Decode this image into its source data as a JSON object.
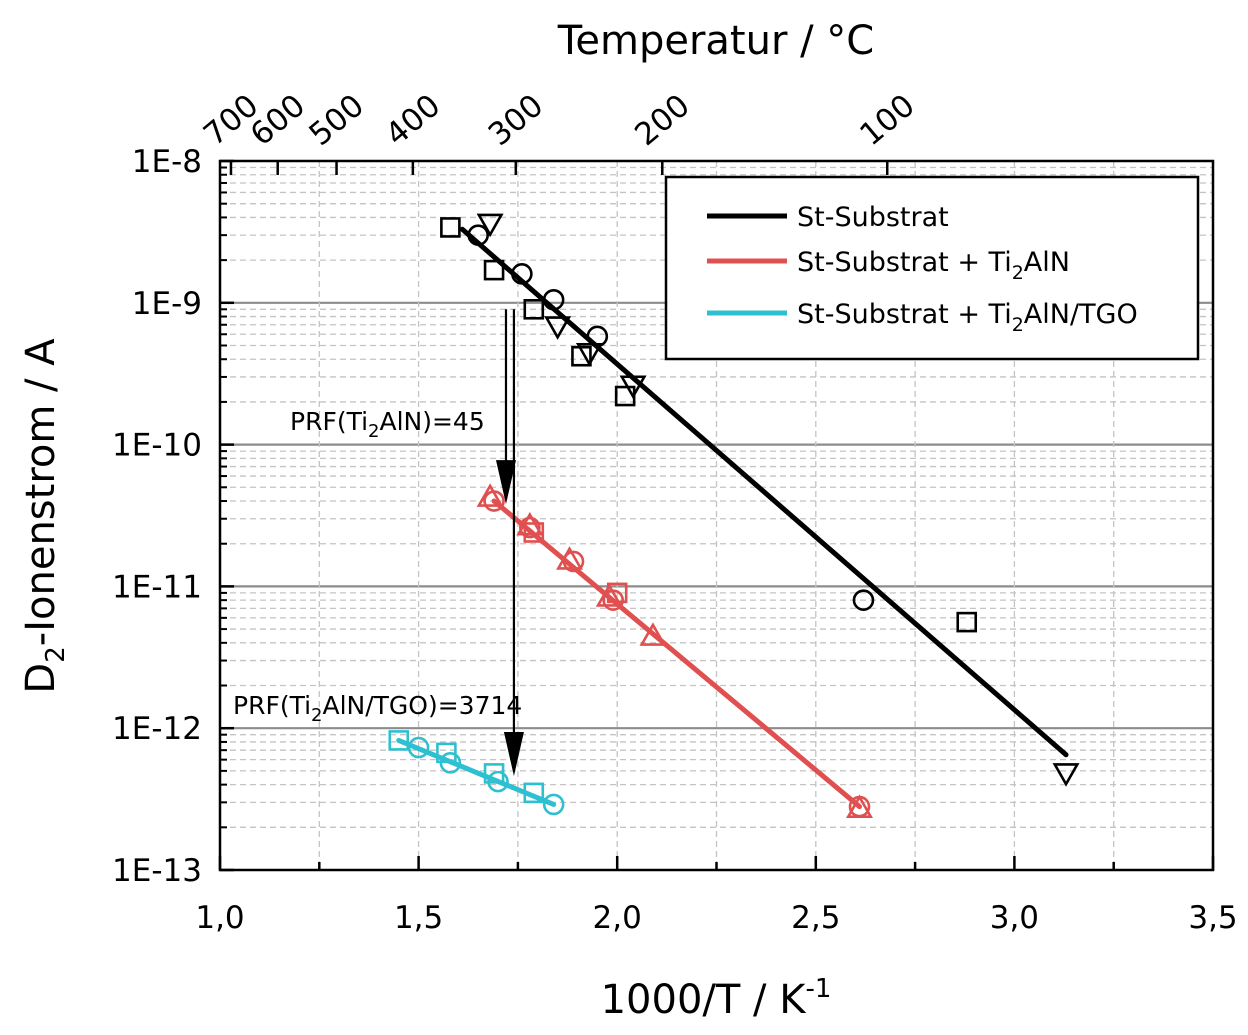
{
  "chart_data": {
    "type": "scatter",
    "x_axis": {
      "label_main": "1000/T / K",
      "label_sup": "-1",
      "range": [
        1.0,
        3.5
      ],
      "ticks": [
        1.0,
        1.5,
        2.0,
        2.5,
        3.0,
        3.5
      ],
      "tick_labels": [
        "1,0",
        "1,5",
        "2,0",
        "2,5",
        "3,0",
        "3,5"
      ]
    },
    "top_axis": {
      "label": "Temperatur / °C",
      "ticks_celsius": [
        700,
        600,
        500,
        400,
        300,
        200,
        100
      ],
      "tick_labels": [
        "700",
        "600",
        "500",
        "400",
        "300",
        "200",
        "100"
      ]
    },
    "y_axis": {
      "label_pre": "D",
      "label_sub": "2",
      "label_post": "-Ionenstrom / A",
      "scale": "log",
      "range": [
        1e-13,
        1e-08
      ],
      "tick_labels": [
        "1E-13",
        "1E-12",
        "1E-11",
        "1E-10",
        "1E-9",
        "1E-8"
      ]
    },
    "grid": true,
    "legend_position": "top-right",
    "series": [
      {
        "name": "St-Substrat",
        "color": "#000000",
        "fit": [
          [
            1.61,
            3.3e-09
          ],
          [
            3.13,
            6.5e-13
          ]
        ],
        "markers": {
          "square": [
            [
              1.58,
              3.4e-09
            ],
            [
              1.69,
              1.7e-09
            ],
            [
              1.79,
              9e-10
            ],
            [
              1.91,
              4.2e-10
            ],
            [
              2.02,
              2.2e-10
            ],
            [
              2.88,
              5.6e-12
            ]
          ],
          "circle": [
            [
              1.65,
              3e-09
            ],
            [
              1.76,
              1.6e-09
            ],
            [
              1.84,
              1.05e-09
            ],
            [
              1.95,
              5.8e-10
            ],
            [
              2.62,
              8e-12
            ]
          ],
          "triangle_down": [
            [
              1.68,
              3.6e-09
            ],
            [
              1.85,
              6.8e-10
            ],
            [
              1.93,
              4.4e-10
            ],
            [
              2.04,
              2.6e-10
            ],
            [
              3.13,
              4.8e-13
            ]
          ]
        }
      },
      {
        "name_pre": "St-Substrat + Ti",
        "name_sub": "2",
        "name_post": "AlN",
        "color": "#e05050",
        "fit": [
          [
            1.69,
            4e-11
          ],
          [
            2.61,
            2.8e-13
          ]
        ],
        "markers": {
          "square": [
            [
              1.79,
              2.4e-11
            ],
            [
              2.0,
              9e-12
            ]
          ],
          "circle": [
            [
              1.69,
              4e-11
            ],
            [
              1.78,
              2.6e-11
            ],
            [
              1.89,
              1.5e-11
            ],
            [
              1.99,
              8e-12
            ],
            [
              2.61,
              2.8e-13
            ]
          ],
          "triangle_up": [
            [
              1.68,
              4.3e-11
            ],
            [
              1.78,
              2.7e-11
            ],
            [
              1.88,
              1.55e-11
            ],
            [
              1.98,
              8.5e-12
            ],
            [
              2.09,
              4.5e-12
            ],
            [
              2.61,
              2.75e-13
            ]
          ]
        }
      },
      {
        "name_pre": "St-Substrat + Ti",
        "name_sub": "2",
        "name_post": "AlN/TGO",
        "color": "#2ec0d0",
        "fit": [
          [
            1.45,
            8.2e-13
          ],
          [
            1.84,
            2.9e-13
          ]
        ],
        "markers": {
          "square": [
            [
              1.45,
              8.2e-13
            ],
            [
              1.57,
              6.7e-13
            ],
            [
              1.69,
              4.8e-13
            ],
            [
              1.79,
              3.5e-13
            ]
          ],
          "circle": [
            [
              1.5,
              7.3e-13
            ],
            [
              1.58,
              5.7e-13
            ],
            [
              1.7,
              4.2e-13
            ],
            [
              1.84,
              2.9e-13
            ]
          ]
        }
      }
    ],
    "annotations": [
      {
        "text_pre": "PRF(Ti",
        "text_sub": "2",
        "text_post": "AlN)=45",
        "arrow_x": 1.72,
        "arrow_from": 9e-10,
        "arrow_to": 3.8e-11
      },
      {
        "text_pre": "PRF(Ti",
        "text_sub": "2",
        "text_post": "AlN/TGO)=3714",
        "arrow_x": 1.74,
        "arrow_from": 9e-10,
        "arrow_to": 4.6e-13
      }
    ]
  }
}
